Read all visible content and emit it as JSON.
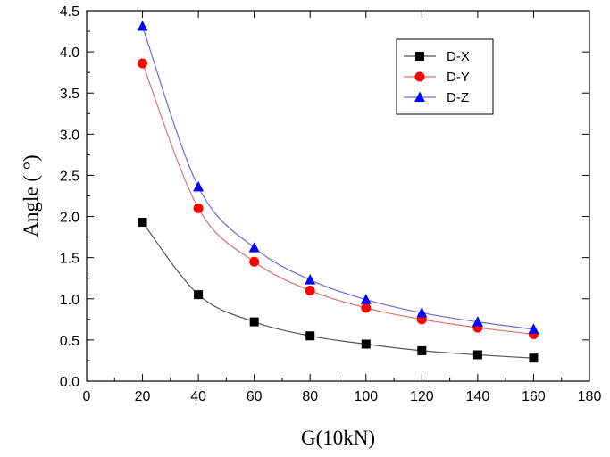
{
  "chart_data": {
    "type": "line",
    "title": "",
    "xlabel": "G(10kN)",
    "ylabel": "Angle ( °)",
    "xlim": [
      0,
      180
    ],
    "ylim": [
      0,
      4.5
    ],
    "x_ticks": [
      "0",
      "20",
      "40",
      "60",
      "80",
      "100",
      "120",
      "140",
      "160",
      "180"
    ],
    "y_ticks": [
      "0.0",
      "0.5",
      "1.0",
      "1.5",
      "2.0",
      "2.5",
      "3.0",
      "3.5",
      "4.0",
      "4.5"
    ],
    "grid": false,
    "legend_position": "top-right",
    "x": [
      20,
      40,
      60,
      80,
      100,
      120,
      140,
      160
    ],
    "series": [
      {
        "name": "D-X",
        "marker": "square",
        "color": "#000000",
        "line_color": "#555555",
        "values": [
          1.93,
          1.05,
          0.72,
          0.55,
          0.45,
          0.37,
          0.32,
          0.28
        ]
      },
      {
        "name": "D-Y",
        "marker": "circle",
        "color": "#ff0000",
        "line_color": "#e07070",
        "values": [
          3.86,
          2.1,
          1.45,
          1.1,
          0.89,
          0.75,
          0.65,
          0.57
        ]
      },
      {
        "name": "D-Z",
        "marker": "triangle",
        "color": "#0000ff",
        "line_color": "#6b6bd6",
        "values": [
          4.31,
          2.36,
          1.62,
          1.23,
          0.99,
          0.83,
          0.72,
          0.63
        ]
      }
    ]
  }
}
